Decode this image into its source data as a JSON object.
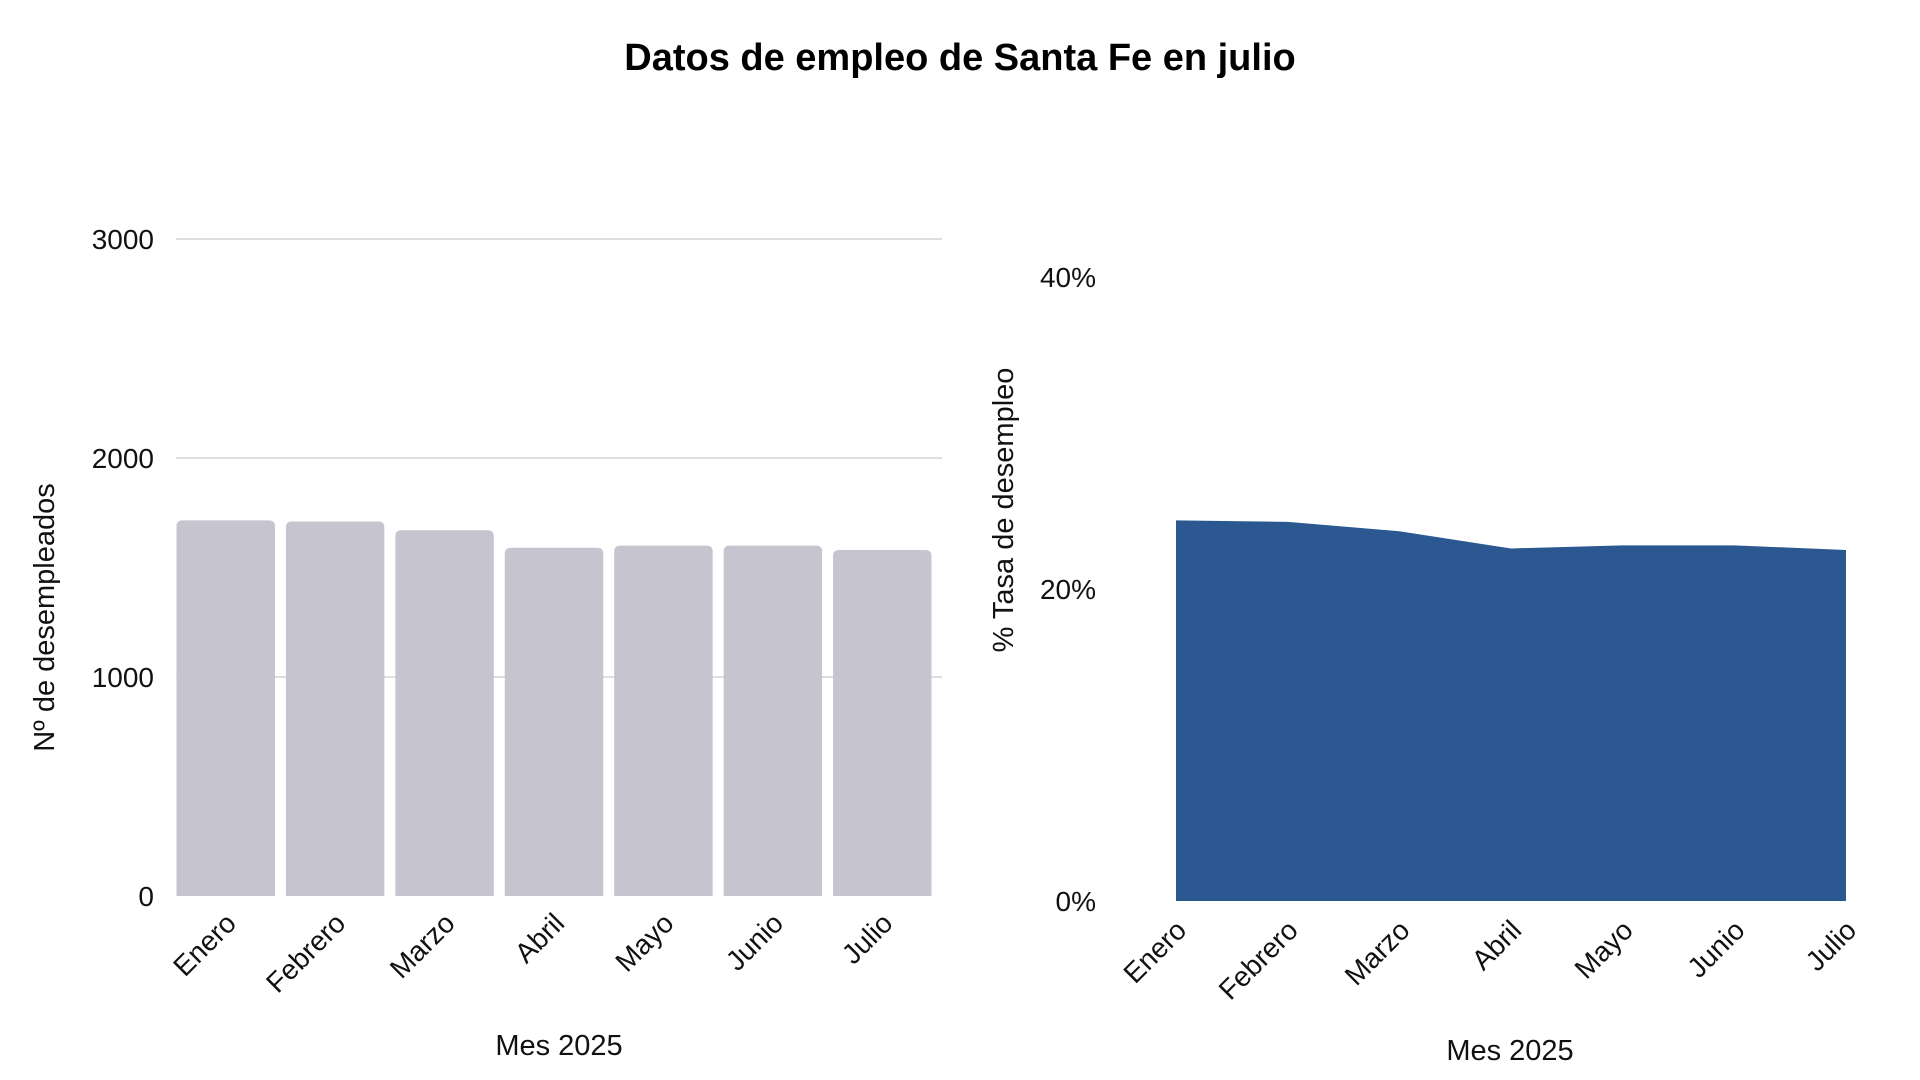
{
  "title": "Datos de empleo de Santa Fe en julio",
  "chart_data": [
    {
      "type": "bar",
      "categories": [
        "Enero",
        "Febrero",
        "Marzo",
        "Abril",
        "Mayo",
        "Junio",
        "Julio"
      ],
      "values": [
        1715,
        1710,
        1670,
        1590,
        1600,
        1600,
        1580
      ],
      "xlabel": "Mes 2025",
      "ylabel": "Nº de desempleados",
      "ylim": [
        0,
        3000
      ],
      "yticks": [
        0,
        1000,
        2000,
        3000
      ],
      "ytick_labels": [
        "0",
        "1000",
        "2000",
        "3000"
      ],
      "grid": true,
      "color": "#c5c4cf"
    },
    {
      "type": "area",
      "categories": [
        "Enero",
        "Febrero",
        "Marzo",
        "Abril",
        "Mayo",
        "Junio",
        "Julio"
      ],
      "values": [
        24.4,
        24.3,
        23.7,
        22.6,
        22.8,
        22.8,
        22.5
      ],
      "xlabel": "Mes 2025",
      "ylabel": "% Tasa de desempleo",
      "ylim": [
        0,
        40
      ],
      "yticks": [
        0,
        20,
        40
      ],
      "ytick_labels": [
        "0%",
        "20%",
        "40%"
      ],
      "grid": false,
      "color": "#2b5891"
    }
  ]
}
